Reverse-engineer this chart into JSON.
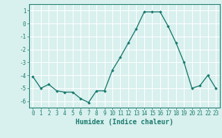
{
  "xlabel": "Humidex (Indice chaleur)",
  "ylabel": "",
  "x": [
    0,
    1,
    2,
    3,
    4,
    5,
    6,
    7,
    8,
    9,
    10,
    11,
    12,
    13,
    14,
    15,
    16,
    17,
    18,
    19,
    20,
    21,
    22,
    23
  ],
  "y": [
    -4.1,
    -5.0,
    -4.7,
    -5.2,
    -5.3,
    -5.3,
    -5.8,
    -6.1,
    -5.2,
    -5.2,
    -3.6,
    -2.6,
    -1.5,
    -0.4,
    0.9,
    0.9,
    0.9,
    -0.2,
    -1.5,
    -3.0,
    -5.0,
    -4.8,
    -4.0,
    -5.0
  ],
  "ylim": [
    -6.5,
    1.5
  ],
  "xlim": [
    -0.5,
    23.5
  ],
  "yticks": [
    1,
    0,
    -1,
    -2,
    -3,
    -4,
    -5,
    -6
  ],
  "xticks": [
    0,
    1,
    2,
    3,
    4,
    5,
    6,
    7,
    8,
    9,
    10,
    11,
    12,
    13,
    14,
    15,
    16,
    17,
    18,
    19,
    20,
    21,
    22,
    23
  ],
  "line_color": "#1a7a6e",
  "marker": "D",
  "marker_size": 1.8,
  "line_width": 1.0,
  "bg_color": "#d8f0ee",
  "grid_color": "#ffffff",
  "tick_color": "#1a7a6e",
  "label_color": "#1a7a6e",
  "xlabel_fontsize": 7,
  "tick_fontsize": 5.5
}
